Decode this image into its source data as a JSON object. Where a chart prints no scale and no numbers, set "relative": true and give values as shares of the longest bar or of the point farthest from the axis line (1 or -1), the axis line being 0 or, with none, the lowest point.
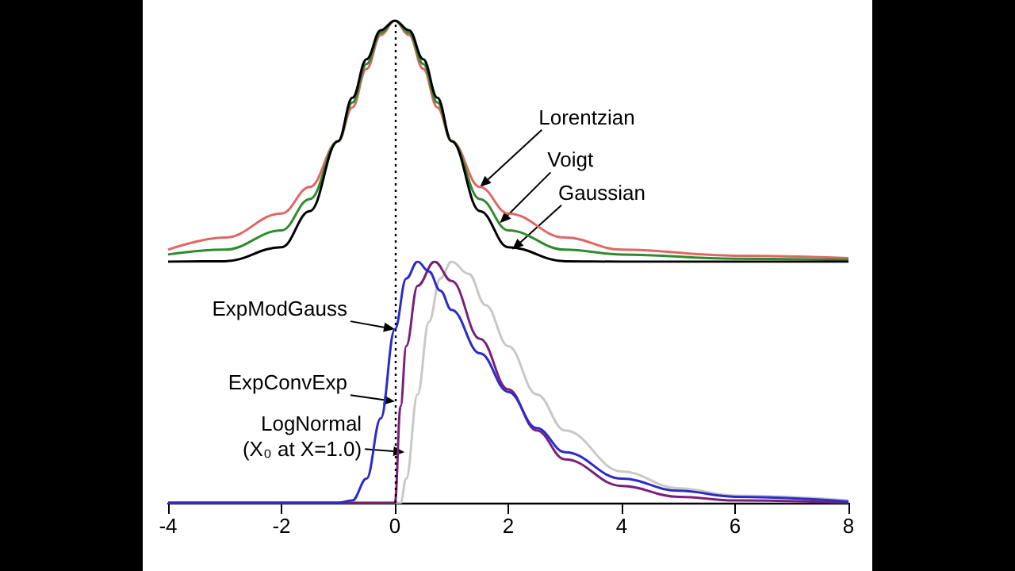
{
  "chart_data": [
    {
      "type": "line",
      "relative": true,
      "xlim": [
        -4,
        8
      ],
      "tick_labels": false,
      "series": [
        {
          "color": "#e06666",
          "x": [
            -4,
            -3,
            -2,
            -1.5,
            -1,
            -0.75,
            -0.5,
            -0.25,
            0,
            0.25,
            0.5,
            0.75,
            1,
            1.5,
            2,
            3,
            4,
            6,
            8
          ],
          "values": [
            0.05,
            0.1,
            0.2,
            0.31,
            0.5,
            0.64,
            0.8,
            0.94,
            1,
            0.94,
            0.8,
            0.64,
            0.5,
            0.31,
            0.2,
            0.1,
            0.05,
            0.025,
            0.015
          ]
        },
        {
          "color": "#2e8b2e",
          "x": [
            -4,
            -3,
            -2,
            -1.5,
            -1,
            -0.75,
            -0.5,
            -0.25,
            0,
            0.25,
            0.5,
            0.75,
            1,
            1.5,
            2,
            3,
            4,
            6,
            8
          ],
          "values": [
            0.03,
            0.05,
            0.13,
            0.26,
            0.5,
            0.66,
            0.82,
            0.95,
            1,
            0.95,
            0.82,
            0.66,
            0.5,
            0.26,
            0.13,
            0.05,
            0.03,
            0.012,
            0.007
          ]
        },
        {
          "color": "#000000",
          "x": [
            -4,
            -3,
            -2,
            -1.5,
            -1,
            -0.75,
            -0.5,
            -0.25,
            0,
            0.25,
            0.5,
            0.75,
            1,
            1.5,
            2,
            3,
            4,
            6,
            8
          ],
          "values": [
            0,
            0.002,
            0.06,
            0.21,
            0.5,
            0.68,
            0.84,
            0.96,
            1,
            0.96,
            0.84,
            0.68,
            0.5,
            0.21,
            0.06,
            0.002,
            0,
            0,
            0
          ]
        }
      ],
      "ref_lines": [
        {
          "axis": "x",
          "value": 0,
          "color": "#000000",
          "line_style": "dotted"
        }
      ],
      "annotations": [
        {
          "text": "Lorentzian",
          "x": 1.5,
          "y": 0.31
        },
        {
          "text": "Voigt",
          "x": 1.85,
          "y": 0.16
        },
        {
          "text": "Gaussian",
          "x": 2.07,
          "y": 0.05
        }
      ]
    },
    {
      "type": "line",
      "relative": true,
      "xlim": [
        -4,
        8
      ],
      "xticks": [
        -4,
        -2,
        0,
        2,
        4,
        6,
        8
      ],
      "tick_labels": "x",
      "series": [
        {
          "color": "#c8c8c8",
          "x": [
            -4,
            0,
            0.1,
            0.2,
            0.4,
            0.6,
            0.8,
            1,
            1.3,
            1.6,
            2,
            2.5,
            3,
            4,
            5,
            6,
            8
          ],
          "values": [
            0,
            0,
            0,
            0.1,
            0.45,
            0.75,
            0.93,
            1,
            0.95,
            0.82,
            0.65,
            0.45,
            0.3,
            0.13,
            0.06,
            0.03,
            0.01
          ]
        },
        {
          "color": "#7a1f7a",
          "x": [
            -4,
            0,
            0.1,
            0.2,
            0.4,
            0.7,
            1,
            1.5,
            2,
            2.5,
            3,
            4,
            5,
            6,
            8
          ],
          "values": [
            0,
            0,
            0.4,
            0.65,
            0.9,
            1,
            0.92,
            0.68,
            0.47,
            0.3,
            0.18,
            0.07,
            0.025,
            0.01,
            0
          ]
        },
        {
          "color": "#2b2bcc",
          "x": [
            -4,
            -1,
            -0.75,
            -0.5,
            -0.25,
            0,
            0.2,
            0.4,
            0.6,
            0.8,
            1,
            1.5,
            2,
            2.5,
            3,
            4,
            5,
            6,
            8
          ],
          "values": [
            0,
            0,
            0.01,
            0.1,
            0.35,
            0.72,
            0.93,
            1,
            0.96,
            0.88,
            0.8,
            0.62,
            0.46,
            0.31,
            0.21,
            0.1,
            0.05,
            0.025,
            0.005
          ]
        }
      ],
      "ref_lines": [
        {
          "axis": "x",
          "value": 0,
          "color": "#000000",
          "line_style": "dotted"
        }
      ],
      "annotations": [
        {
          "text": "ExpModGauss",
          "x": 0,
          "y": 0.72
        },
        {
          "text": "ExpConvExp",
          "x": 0,
          "y": 0.42
        },
        {
          "text": "LogNormal\n(X₀ at X=1.0)",
          "x": 0.17,
          "y": 0.21
        }
      ]
    }
  ]
}
